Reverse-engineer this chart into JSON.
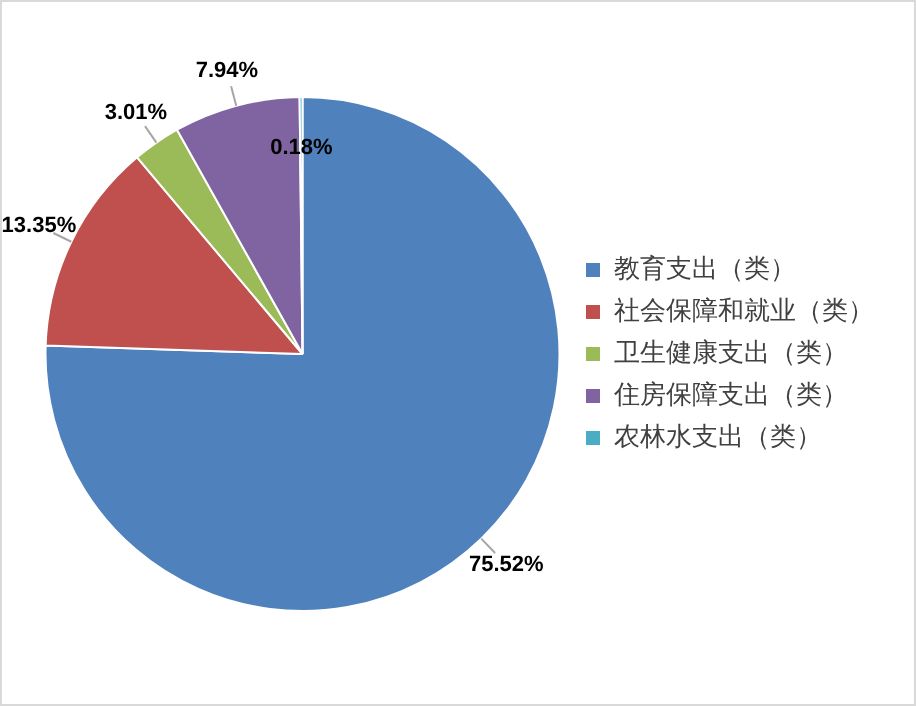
{
  "chart_data": {
    "type": "pie",
    "categories": [
      "教育支出（类）",
      "社会保障和就业（类）",
      "卫生健康支出（类）",
      "住房保障支出（类）",
      "农林水支出（类）"
    ],
    "values": [
      75.52,
      13.35,
      3.01,
      7.94,
      0.18
    ],
    "colors": [
      "#4f81bd",
      "#c0504d",
      "#9bbb59",
      "#8064a2",
      "#4bacc6"
    ],
    "value_labels": [
      "75.52%",
      "13.35%",
      "3.01%",
      "7.94%",
      "0.18%"
    ],
    "legend": "right"
  }
}
